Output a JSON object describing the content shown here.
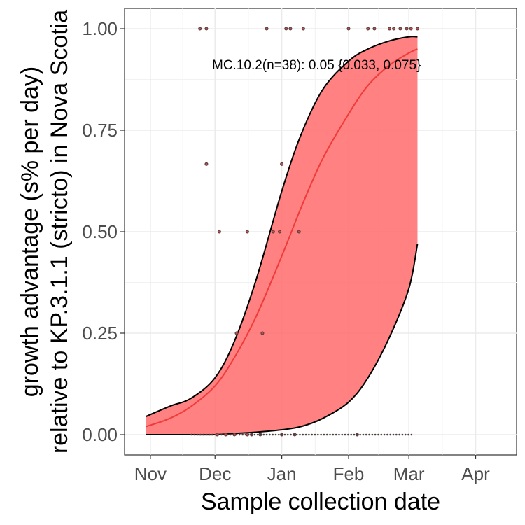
{
  "chart_data": {
    "type": "scatter",
    "xlabel": "Sample collection date",
    "ylabel_line1": "growth advantage (s% per day)",
    "ylabel_line2": "relative to KP.3.1.1 (stricto) in Nova Scotia",
    "x_ticks": [
      "Nov",
      "Dec",
      "Jan",
      "Feb",
      "Mar",
      "Apr"
    ],
    "y_ticks": [
      "0.00",
      "0.25",
      "0.50",
      "0.75",
      "1.00"
    ],
    "xlim": [
      "2024-10-20",
      "2025-04-20"
    ],
    "ylim": [
      -0.05,
      1.05
    ],
    "grid": true,
    "annotation": "MC.10.2(n=38): 0.05 {0.033, 0.075}",
    "colors": {
      "ribbon": "#ff6b6b",
      "fit_line": "#f03b3b",
      "ci_line": "#000000",
      "points": "#4d3b3b"
    },
    "fit_curve": {
      "x": [
        "2024-10-30",
        "2024-11-10",
        "2024-11-20",
        "2024-12-01",
        "2024-12-10",
        "2024-12-20",
        "2025-01-01",
        "2025-01-10",
        "2025-01-20",
        "2025-02-01",
        "2025-02-10",
        "2025-02-20",
        "2025-03-01",
        "2025-03-05"
      ],
      "y": [
        0.02,
        0.04,
        0.07,
        0.12,
        0.19,
        0.29,
        0.44,
        0.56,
        0.68,
        0.79,
        0.86,
        0.91,
        0.94,
        0.95
      ],
      "lower": [
        0.0,
        0.0,
        0.0,
        0.0,
        0.003,
        0.006,
        0.012,
        0.02,
        0.04,
        0.08,
        0.14,
        0.24,
        0.36,
        0.47
      ],
      "upper": [
        0.045,
        0.07,
        0.09,
        0.14,
        0.23,
        0.38,
        0.6,
        0.74,
        0.85,
        0.92,
        0.95,
        0.97,
        0.98,
        0.98
      ]
    },
    "points": {
      "x": [
        "2024-11-24",
        "2024-11-27",
        "2024-12-02",
        "2024-12-06",
        "2024-12-10",
        "2024-12-16",
        "2024-12-18",
        "2024-12-22",
        "2024-12-25",
        "2025-01-01",
        "2025-01-03",
        "2025-01-05",
        "2025-01-07",
        "2025-01-11",
        "2025-02-01",
        "2025-02-05",
        "2025-02-10",
        "2025-02-13",
        "2025-02-20",
        "2025-02-22",
        "2025-02-25",
        "2025-02-28",
        "2025-03-02",
        "2025-03-05",
        "2024-11-27",
        "2025-01-01",
        "2024-12-03",
        "2024-12-16",
        "2024-12-28",
        "2024-12-31",
        "2025-01-09",
        "2024-12-11",
        "2024-12-23"
      ],
      "y": [
        1.0,
        1.0,
        0.0,
        0.0,
        0.0,
        0.0,
        0.0,
        0.0,
        1.0,
        0.0,
        1.0,
        1.0,
        0.0,
        1.0,
        1.0,
        0.0,
        1.0,
        1.0,
        1.0,
        1.0,
        1.0,
        1.0,
        1.0,
        1.0,
        0.6667,
        0.6667,
        0.5,
        0.5,
        0.5,
        0.5,
        0.5,
        0.25,
        0.25
      ]
    }
  }
}
